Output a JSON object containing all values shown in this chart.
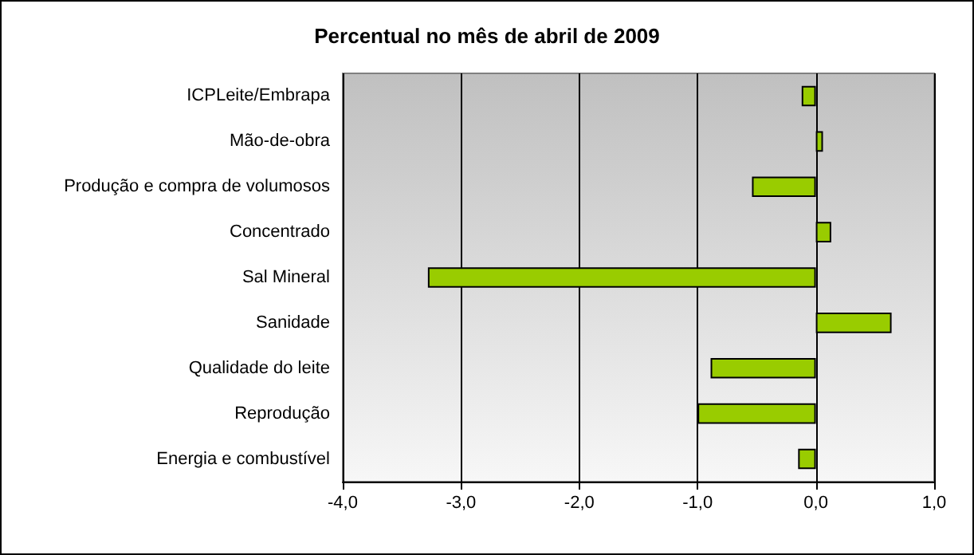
{
  "chart_data": {
    "type": "bar",
    "orientation": "horizontal",
    "title": "Percentual no mês de abril de 2009",
    "categories": [
      "ICPLeite/Embrapa",
      "Mão-de-obra",
      "Produção e compra de volumosos",
      "Concentrado",
      "Sal Mineral",
      "Sanidade",
      "Qualidade do leite",
      "Reprodução",
      "Energia e combustível"
    ],
    "values": [
      -0.12,
      0.06,
      -0.54,
      0.13,
      -3.28,
      0.64,
      -0.89,
      -1.0,
      -0.15
    ],
    "color": "#99cc00",
    "xlim": [
      -4,
      1
    ],
    "xticks": [
      {
        "value": -4,
        "label": "-4,0"
      },
      {
        "value": -3,
        "label": "-3,0"
      },
      {
        "value": -2,
        "label": "-2,0"
      },
      {
        "value": -1,
        "label": "-1,0"
      },
      {
        "value": 0,
        "label": "0,0"
      },
      {
        "value": 1,
        "label": "1,0"
      }
    ],
    "grid": "x"
  }
}
